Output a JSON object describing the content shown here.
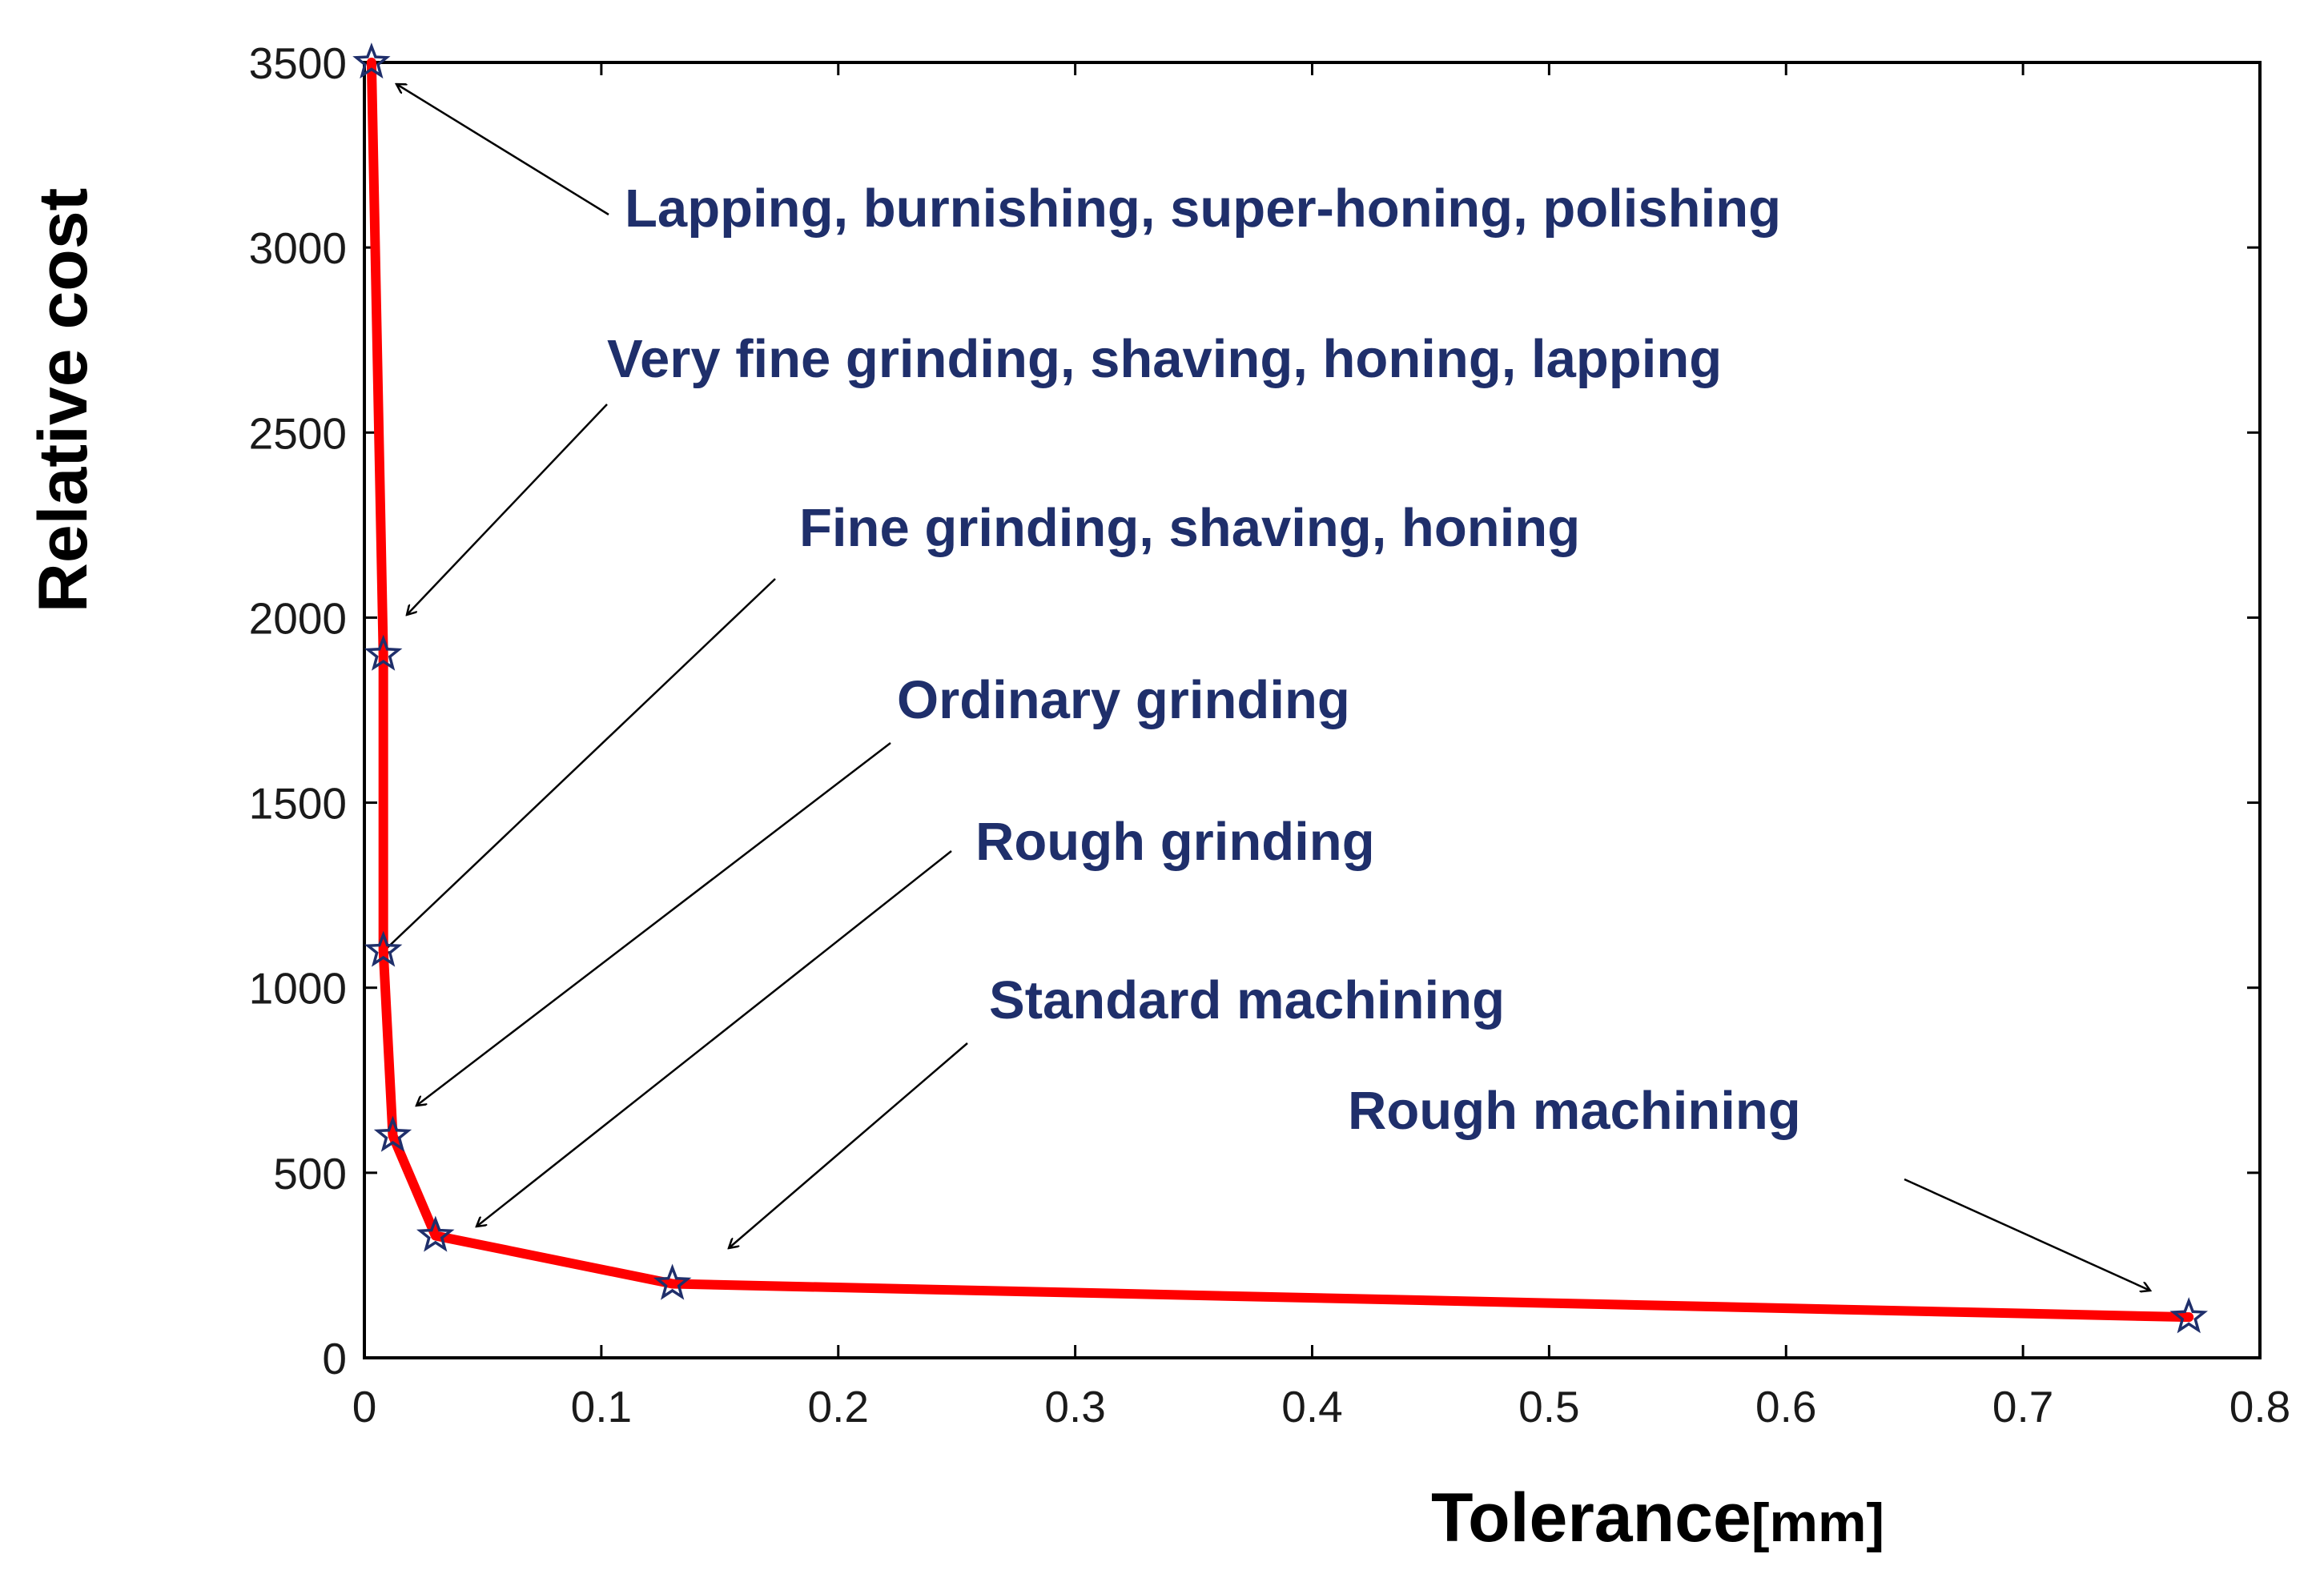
{
  "chart_data": {
    "type": "line",
    "title": "",
    "xlabel": "Tolerance",
    "xunit": "[mm]",
    "ylabel": "Relative cost",
    "xlim": [
      0,
      0.8
    ],
    "ylim": [
      0,
      3500
    ],
    "xticks": [
      0,
      0.1,
      0.2,
      0.3,
      0.4,
      0.5,
      0.6,
      0.7,
      0.8
    ],
    "xtick_labels": [
      "0",
      "0.1",
      "0.2",
      "0.3",
      "0.4",
      "0.5",
      "0.6",
      "0.7",
      "0.8"
    ],
    "yticks": [
      0,
      500,
      1000,
      1500,
      2000,
      2500,
      3000,
      3500
    ],
    "ytick_labels": [
      "0",
      "500",
      "1000",
      "1500",
      "2000",
      "2500",
      "3000",
      "3500"
    ],
    "grid": false,
    "series": [
      {
        "name": "Relative cost vs tolerance",
        "color": "#ff0000",
        "marker": "star",
        "marker_color": "#1f2f6b",
        "x": [
          0.003,
          0.008,
          0.008,
          0.012,
          0.03,
          0.13,
          0.77
        ],
        "y": [
          3500,
          1900,
          1100,
          600,
          330,
          200,
          110
        ]
      }
    ],
    "annotations": [
      {
        "text": "Lapping, burnishing, super-honing, polishing",
        "point_index": 0
      },
      {
        "text": "Very fine grinding, shaving, honing, lapping",
        "point_index": 1
      },
      {
        "text": "Fine grinding, shaving, honing",
        "point_index": 2
      },
      {
        "text": "Ordinary grinding",
        "point_index": 3
      },
      {
        "text": "Rough grinding",
        "point_index": 4
      },
      {
        "text": "Standard machining",
        "point_index": 5
      },
      {
        "text": "Rough machining",
        "point_index": 6
      }
    ]
  }
}
